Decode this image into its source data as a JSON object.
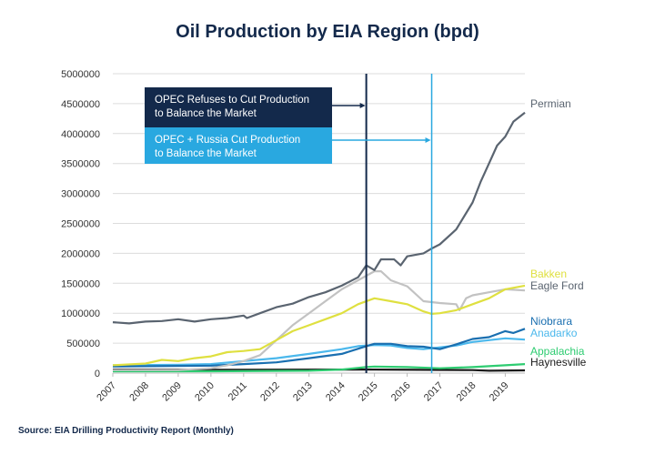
{
  "title": "Oil Production by EIA Region (bpd)",
  "source": "Source: EIA Drilling Productivity Report (Monthly)",
  "chart_data": {
    "type": "line",
    "title": "Oil Production by EIA Region (bpd)",
    "xlabel": "",
    "ylabel": "",
    "xlim": [
      2007,
      2019.6
    ],
    "ylim": [
      0,
      5000000
    ],
    "yticks": [
      "0",
      "500000",
      "1000000",
      "1500000",
      "2000000",
      "2500000",
      "3000000",
      "3500000",
      "4000000",
      "4500000",
      "5000000"
    ],
    "xticks": [
      "2007",
      "2008",
      "2009",
      "2010",
      "2011",
      "2012",
      "2013",
      "2014",
      "2015",
      "2016",
      "2017",
      "2018",
      "2019"
    ],
    "grid": "horizontal",
    "legend": "right-end labels",
    "annotations": [
      {
        "text": "OPEC Refuses to Cut Production to Balance the Market",
        "line1": "OPEC Refuses to Cut Production",
        "line2": "to Balance the Market",
        "x": 2014.75,
        "color": "#13294b"
      },
      {
        "text": "OPEC + Russia Cut Production to Balance the Market",
        "line1": "OPEC + Russia Cut Production",
        "line2": "to Balance the Market",
        "x": 2016.75,
        "color": "#29a8e0"
      }
    ],
    "series": [
      {
        "name": "Permian",
        "color": "#5a6470",
        "points": [
          [
            2007,
            850000
          ],
          [
            2007.5,
            830000
          ],
          [
            2008,
            860000
          ],
          [
            2008.5,
            870000
          ],
          [
            2009,
            900000
          ],
          [
            2009.5,
            860000
          ],
          [
            2010,
            900000
          ],
          [
            2010.5,
            920000
          ],
          [
            2011,
            960000
          ],
          [
            2011.1,
            920000
          ],
          [
            2011.5,
            1000000
          ],
          [
            2012,
            1100000
          ],
          [
            2012.5,
            1160000
          ],
          [
            2013,
            1270000
          ],
          [
            2013.5,
            1350000
          ],
          [
            2014,
            1460000
          ],
          [
            2014.5,
            1600000
          ],
          [
            2014.75,
            1800000
          ],
          [
            2015,
            1720000
          ],
          [
            2015.2,
            1900000
          ],
          [
            2015.6,
            1900000
          ],
          [
            2015.8,
            1800000
          ],
          [
            2016,
            1950000
          ],
          [
            2016.5,
            2000000
          ],
          [
            2016.75,
            2080000
          ],
          [
            2017,
            2150000
          ],
          [
            2017.5,
            2400000
          ],
          [
            2018,
            2850000
          ],
          [
            2018.25,
            3200000
          ],
          [
            2018.5,
            3500000
          ],
          [
            2018.75,
            3800000
          ],
          [
            2019,
            3950000
          ],
          [
            2019.25,
            4200000
          ],
          [
            2019.6,
            4350000
          ]
        ]
      },
      {
        "name": "Bakken",
        "color": "#dfe040",
        "points": [
          [
            2007,
            130000
          ],
          [
            2008,
            160000
          ],
          [
            2008.5,
            220000
          ],
          [
            2009,
            200000
          ],
          [
            2009.5,
            250000
          ],
          [
            2010,
            280000
          ],
          [
            2010.5,
            350000
          ],
          [
            2011,
            370000
          ],
          [
            2011.5,
            400000
          ],
          [
            2012,
            550000
          ],
          [
            2012.5,
            700000
          ],
          [
            2013,
            800000
          ],
          [
            2013.5,
            900000
          ],
          [
            2014,
            1000000
          ],
          [
            2014.5,
            1150000
          ],
          [
            2015,
            1250000
          ],
          [
            2015.5,
            1200000
          ],
          [
            2016,
            1150000
          ],
          [
            2016.5,
            1030000
          ],
          [
            2016.75,
            990000
          ],
          [
            2017,
            1000000
          ],
          [
            2017.5,
            1050000
          ],
          [
            2018,
            1150000
          ],
          [
            2018.5,
            1250000
          ],
          [
            2019,
            1400000
          ],
          [
            2019.6,
            1460000
          ]
        ]
      },
      {
        "name": "Eagle Ford",
        "color": "#c2c2c2",
        "points": [
          [
            2007,
            50000
          ],
          [
            2009,
            50000
          ],
          [
            2010,
            80000
          ],
          [
            2010.5,
            130000
          ],
          [
            2011,
            200000
          ],
          [
            2011.5,
            300000
          ],
          [
            2012,
            550000
          ],
          [
            2012.5,
            800000
          ],
          [
            2013,
            1000000
          ],
          [
            2013.5,
            1200000
          ],
          [
            2014,
            1400000
          ],
          [
            2014.5,
            1550000
          ],
          [
            2015,
            1700000
          ],
          [
            2015.2,
            1700000
          ],
          [
            2015.5,
            1550000
          ],
          [
            2016,
            1450000
          ],
          [
            2016.5,
            1200000
          ],
          [
            2017,
            1170000
          ],
          [
            2017.5,
            1150000
          ],
          [
            2017.6,
            1050000
          ],
          [
            2017.8,
            1250000
          ],
          [
            2018,
            1300000
          ],
          [
            2018.5,
            1350000
          ],
          [
            2019,
            1400000
          ],
          [
            2019.6,
            1380000
          ]
        ]
      },
      {
        "name": "Niobrara",
        "color": "#1a6fb0",
        "points": [
          [
            2007,
            110000
          ],
          [
            2009,
            120000
          ],
          [
            2010,
            125000
          ],
          [
            2011,
            150000
          ],
          [
            2012,
            180000
          ],
          [
            2013,
            250000
          ],
          [
            2014,
            320000
          ],
          [
            2014.75,
            450000
          ],
          [
            2015,
            490000
          ],
          [
            2015.5,
            490000
          ],
          [
            2016,
            450000
          ],
          [
            2016.5,
            440000
          ],
          [
            2017,
            400000
          ],
          [
            2017.5,
            480000
          ],
          [
            2018,
            570000
          ],
          [
            2018.5,
            600000
          ],
          [
            2019,
            700000
          ],
          [
            2019.25,
            670000
          ],
          [
            2019.6,
            740000
          ]
        ]
      },
      {
        "name": "Anadarko",
        "color": "#4bb8ec",
        "points": [
          [
            2007,
            130000
          ],
          [
            2009,
            140000
          ],
          [
            2010,
            150000
          ],
          [
            2011,
            200000
          ],
          [
            2012,
            250000
          ],
          [
            2013,
            320000
          ],
          [
            2014,
            400000
          ],
          [
            2014.5,
            450000
          ],
          [
            2015,
            470000
          ],
          [
            2015.5,
            460000
          ],
          [
            2016,
            420000
          ],
          [
            2016.5,
            400000
          ],
          [
            2017,
            430000
          ],
          [
            2017.5,
            460000
          ],
          [
            2018,
            520000
          ],
          [
            2018.5,
            550000
          ],
          [
            2019,
            580000
          ],
          [
            2019.6,
            560000
          ]
        ]
      },
      {
        "name": "Appalachia",
        "color": "#2ecc71",
        "points": [
          [
            2007,
            30000
          ],
          [
            2010,
            30000
          ],
          [
            2013,
            40000
          ],
          [
            2014,
            60000
          ],
          [
            2014.75,
            100000
          ],
          [
            2015,
            110000
          ],
          [
            2016,
            100000
          ],
          [
            2017,
            80000
          ],
          [
            2018,
            100000
          ],
          [
            2019,
            130000
          ],
          [
            2019.6,
            150000
          ]
        ]
      },
      {
        "name": "Haynesville",
        "color": "#1a1a1a",
        "points": [
          [
            2007,
            60000
          ],
          [
            2010,
            55000
          ],
          [
            2014,
            60000
          ],
          [
            2015,
            60000
          ],
          [
            2018,
            50000
          ],
          [
            2018.5,
            40000
          ],
          [
            2019.6,
            45000
          ]
        ]
      }
    ]
  }
}
